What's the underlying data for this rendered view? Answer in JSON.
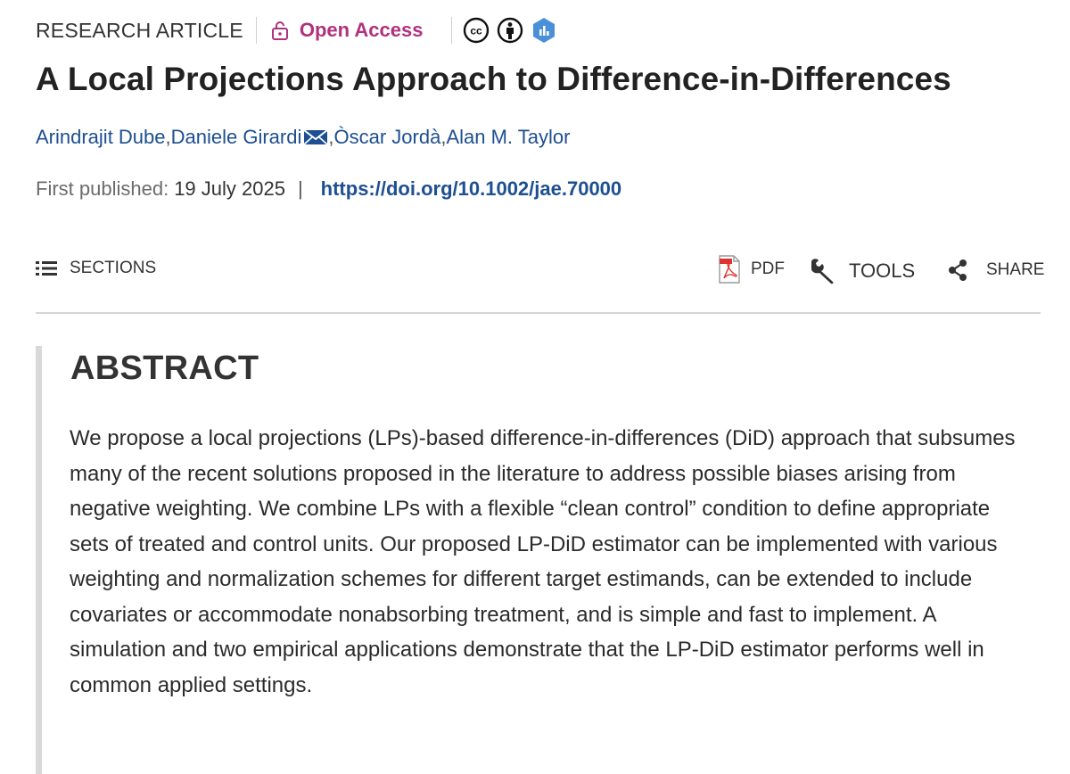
{
  "header": {
    "article_type": "RESEARCH ARTICLE",
    "access": "Open Access",
    "access_color": "#b0317d",
    "badges": [
      "creative-commons-icon",
      "attribution-icon",
      "altmetric-icon"
    ]
  },
  "article": {
    "title": "A Local Projections Approach to Difference-in-Differences",
    "authors": [
      {
        "name": "Arindrajit Dube"
      },
      {
        "name": "Daniele Girardi",
        "corresponding": true
      },
      {
        "name": "Òscar Jordà"
      },
      {
        "name": "Alan M. Taylor"
      }
    ],
    "author_separator": ", ",
    "published_label": "First published:",
    "published_date": "19 July 2025",
    "separator": "|",
    "doi": "https://doi.org/10.1002/jae.70000",
    "link_color": "#1d4f91"
  },
  "toolbar": {
    "sections_label": "SECTIONS",
    "pdf_label": "PDF",
    "tools_label": "TOOLS",
    "share_label": "SHARE"
  },
  "abstract": {
    "heading": "ABSTRACT",
    "text": "We propose a local projections (LPs)-based difference-in-differences (DiD) approach that subsumes many of the recent solutions proposed in the literature to address possible biases arising from negative weighting. We combine LPs with a flexible “clean control” condition to define appropriate sets of treated and control units. Our proposed LP-DiD estimator can be implemented with various weighting and normalization schemes for different target estimands, can be extended to include covariates or accommodate nonabsorbing treatment, and is simple and fast to implement. A simulation and two empirical applications demonstrate that the LP-DiD estimator performs well in common applied settings."
  }
}
